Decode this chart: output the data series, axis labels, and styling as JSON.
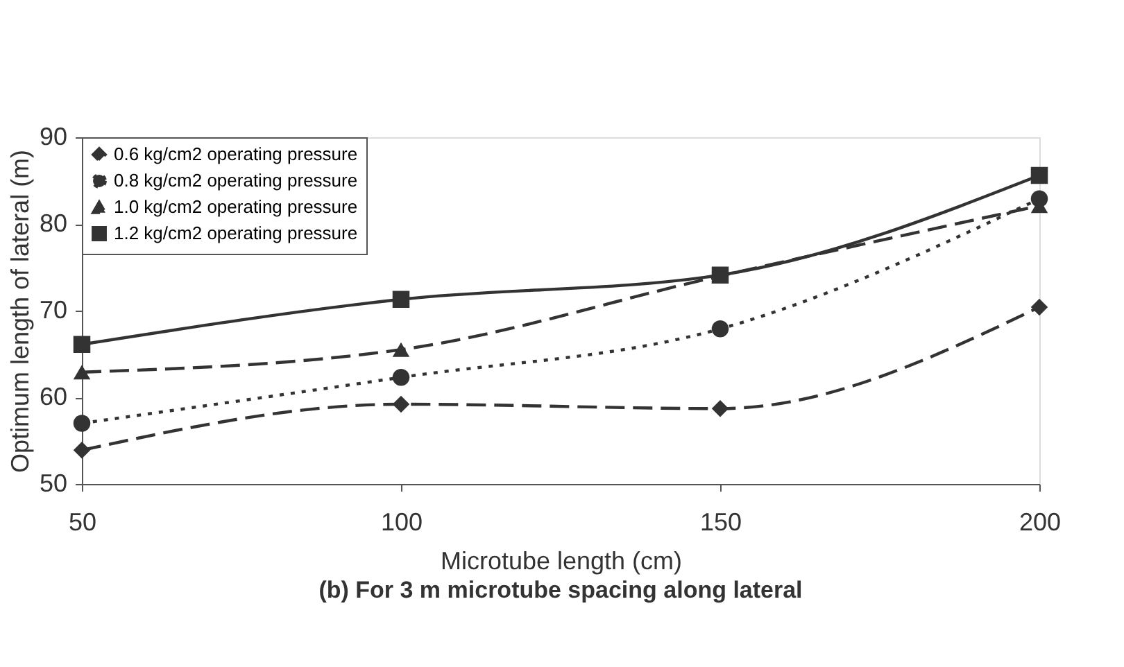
{
  "chart_data": {
    "type": "line",
    "title": "(b) For 3 m microtube spacing along lateral",
    "xlabel": "Microtube length (cm)",
    "ylabel": "Optimum length of lateral (m)",
    "x": [
      50,
      100,
      150,
      200
    ],
    "xlim": [
      50,
      200
    ],
    "xticks": [
      50,
      100,
      150,
      200
    ],
    "ylim": [
      50,
      90
    ],
    "yticks": [
      50,
      60,
      70,
      80,
      90
    ],
    "grid": false,
    "legend": "top left",
    "series": [
      {
        "name": "0.6 kg/cm2 operating pressure",
        "color": "#333333",
        "marker": "diamond",
        "line_style": "dashed",
        "values": [
          53.9,
          59.2,
          58.7,
          70.4
        ]
      },
      {
        "name": "0.8 kg/cm2 operating pressure",
        "color": "#333333",
        "marker": "circle",
        "line_style": "dotted",
        "values": [
          57.0,
          62.3,
          67.9,
          82.9
        ]
      },
      {
        "name": "1.0 kg/cm2 operating pressure",
        "color": "#333333",
        "marker": "triangle",
        "line_style": "dashed",
        "values": [
          62.9,
          65.5,
          74.0,
          82.1
        ]
      },
      {
        "name": "1.2 kg/cm2 operating pressure",
        "color": "#333333",
        "marker": "square",
        "line_style": "solid",
        "values": [
          66.1,
          71.3,
          74.1,
          85.6
        ]
      }
    ]
  }
}
